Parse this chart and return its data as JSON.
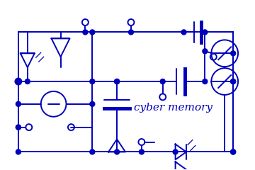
{
  "bg_color": "#ffffff",
  "line_color": "#0000BB",
  "line_width": 1.4,
  "title_text": "cyber memory",
  "title_fontsize": 11,
  "title_color": "#0000BB",
  "figsize": [
    3.6,
    2.4
  ],
  "dpi": 100
}
